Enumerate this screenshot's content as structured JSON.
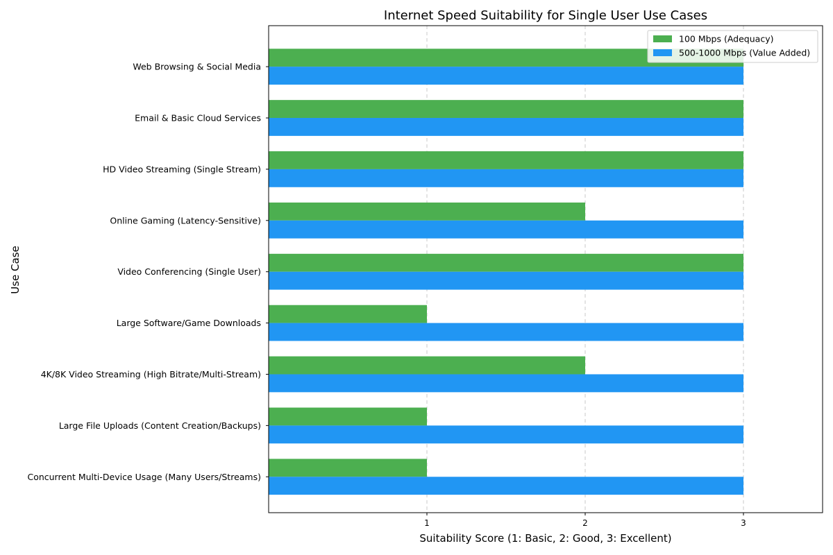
{
  "chart_data": {
    "type": "bar",
    "orientation": "horizontal",
    "title": "Internet Speed Suitability for Single User Use Cases",
    "xlabel": "Suitability Score (1: Basic, 2: Good, 3: Excellent)",
    "ylabel": "Use Case",
    "xlim": [
      0,
      3.5
    ],
    "xticks": [
      1,
      2,
      3
    ],
    "grid": "x-dashed",
    "legend_position": "top-right",
    "categories": [
      "Web Browsing & Social Media",
      "Email & Basic Cloud Services",
      "HD Video Streaming (Single Stream)",
      "Online Gaming (Latency-Sensitive)",
      "Video Conferencing (Single User)",
      "Large Software/Game Downloads",
      "4K/8K Video Streaming (High Bitrate/Multi-Stream)",
      "Large File Uploads (Content Creation/Backups)",
      "Concurrent Multi-Device Usage (Many Users/Streams)"
    ],
    "series": [
      {
        "name": "100 Mbps (Adequacy)",
        "color": "#4caf50",
        "values": [
          3,
          3,
          3,
          2,
          3,
          1,
          2,
          1,
          1
        ]
      },
      {
        "name": "500-1000 Mbps (Value Added)",
        "color": "#2196f3",
        "values": [
          3,
          3,
          3,
          3,
          3,
          3,
          3,
          3,
          3
        ]
      }
    ]
  }
}
